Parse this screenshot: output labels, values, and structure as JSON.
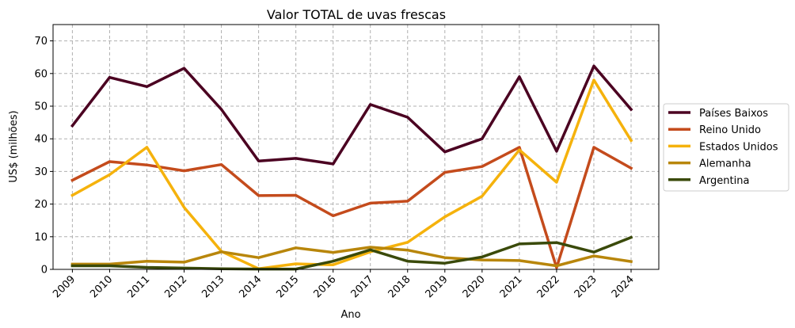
{
  "chart_data": {
    "type": "line",
    "title": "Valor TOTAL de uvas frescas",
    "xlabel": "Ano",
    "ylabel": "US$ (milhões)",
    "x": [
      "2009",
      "2010",
      "2011",
      "2012",
      "2013",
      "2014",
      "2015",
      "2016",
      "2017",
      "2018",
      "2019",
      "2020",
      "2021",
      "2022",
      "2023",
      "2024"
    ],
    "ylim": [
      0,
      75
    ],
    "yticks": [
      0,
      10,
      20,
      30,
      40,
      50,
      60,
      70
    ],
    "grid": true,
    "legend_position": "right-outside",
    "series": [
      {
        "name": "Países Baixos",
        "color": "#4b0021",
        "values": [
          44,
          58.8,
          56,
          61.6,
          49,
          33.2,
          34,
          32.3,
          50.5,
          46.6,
          36,
          40,
          59,
          36.2,
          62.3,
          49
        ]
      },
      {
        "name": "Reino Unido",
        "color": "#c44b1c",
        "values": [
          27.3,
          33,
          32,
          30.2,
          32.1,
          22.6,
          22.7,
          16.4,
          20.3,
          20.9,
          29.7,
          31.5,
          37.4,
          0.5,
          37.4,
          31
        ]
      },
      {
        "name": "Estados Unidos",
        "color": "#f5b20c",
        "values": [
          22.7,
          29,
          37.4,
          19,
          5.5,
          0.2,
          1.7,
          1.4,
          5.4,
          8.3,
          16.1,
          22.4,
          36.6,
          26.7,
          58,
          39.5
        ]
      },
      {
        "name": "Alemanha",
        "color": "#b8860b",
        "values": [
          1.6,
          1.6,
          2.5,
          2.2,
          5.4,
          3.6,
          6.6,
          5.2,
          6.8,
          5.9,
          3.6,
          2.9,
          2.7,
          1.1,
          4.1,
          2.4
        ]
      },
      {
        "name": "Argentina",
        "color": "#3a4a0a",
        "values": [
          1.1,
          1.1,
          0.6,
          0.4,
          0.2,
          0.1,
          0.1,
          2.5,
          6,
          2.5,
          1.9,
          3.8,
          7.8,
          8.2,
          5.3,
          9.8
        ]
      }
    ]
  }
}
